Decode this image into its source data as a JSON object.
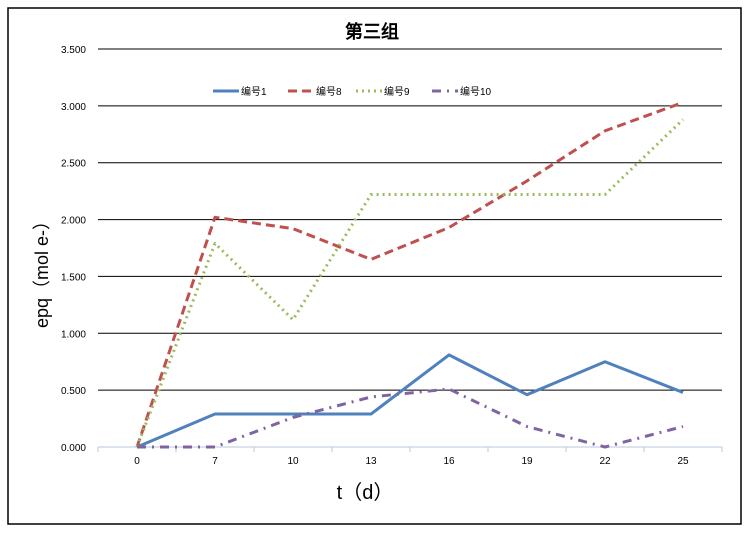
{
  "chart_data": {
    "type": "line",
    "title": "第三组",
    "xlabel": "t（d）",
    "ylabel": "epq（mol e-）",
    "categories": [
      "0",
      "7",
      "10",
      "13",
      "16",
      "19",
      "22",
      "25"
    ],
    "ylim": [
      0,
      3.5
    ],
    "yticks": [
      "0.000",
      "0.500",
      "1.000",
      "1.500",
      "2.000",
      "2.500",
      "3.000",
      "3.500"
    ],
    "grid": true,
    "legend_position": "top",
    "series": [
      {
        "name": "编号1",
        "color": "#4F81BD",
        "dash": "solid",
        "values": [
          0,
          0.29,
          0.29,
          0.29,
          0.81,
          0.46,
          0.75,
          0.48
        ]
      },
      {
        "name": "编号8",
        "color": "#C0504D",
        "dash": "dash",
        "values": [
          0,
          2.02,
          1.92,
          1.65,
          1.93,
          2.34,
          2.78,
          3.03
        ]
      },
      {
        "name": "编号9",
        "color": "#9BBB59",
        "dash": "dot",
        "values": [
          0,
          1.79,
          1.12,
          2.22,
          2.22,
          2.22,
          2.22,
          2.88
        ]
      },
      {
        "name": "编号10",
        "color": "#8064A2",
        "dash": "dashdot",
        "values": [
          0,
          0,
          0.26,
          0.44,
          0.51,
          0.18,
          0,
          0.18
        ]
      }
    ]
  }
}
